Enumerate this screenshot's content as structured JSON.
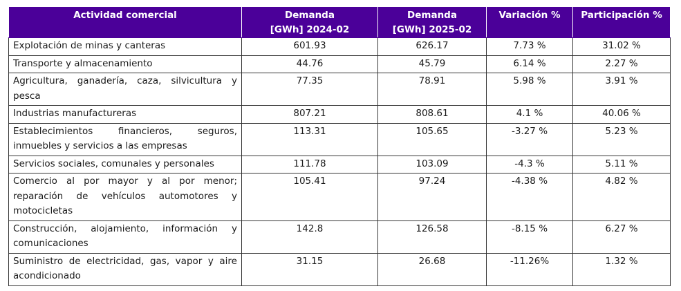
{
  "table": {
    "headers": [
      "Actividad comercial",
      "Demanda\n[GWh] 2024-02",
      "Demanda\n[GWh] 2025-02",
      "Variación %",
      "Participación %"
    ],
    "rows": [
      [
        "Explotación de minas y canteras",
        "601.93",
        "626.17",
        "7.73 %",
        "31.02 %"
      ],
      [
        "Transporte y almacenamiento",
        "44.76",
        "45.79",
        "6.14 %",
        "2.27 %"
      ],
      [
        "Agricultura, ganadería, caza, silvicultura y pesca",
        "77.35",
        "78.91",
        "5.98 %",
        "3.91 %"
      ],
      [
        "Industrias manufactureras",
        "807.21",
        "808.61",
        "4.1 %",
        "40.06 %"
      ],
      [
        "Establecimientos financieros, seguros, inmuebles y servicios a las empresas",
        "113.31",
        "105.65",
        "-3.27 %",
        "5.23 %"
      ],
      [
        "Servicios sociales, comunales y personales",
        "111.78",
        "103.09",
        "-4.3 %",
        "5.11 %"
      ],
      [
        "Comercio al por mayor y al por menor; reparación de vehículos automotores y motocicletas",
        "105.41",
        "97.24",
        "-4.38 %",
        "4.82 %"
      ],
      [
        "Construcción, alojamiento, información y comunicaciones",
        "142.8",
        "126.58",
        "-8.15 %",
        "6.27 %"
      ],
      [
        "Suministro de electricidad, gas, vapor y aire acondicionado",
        "31.15",
        "26.68",
        "-11.26%",
        "1.32 %"
      ]
    ]
  },
  "colors": {
    "header_bg": "#4b0099",
    "header_text": "#ffffff",
    "border": "#333333"
  }
}
